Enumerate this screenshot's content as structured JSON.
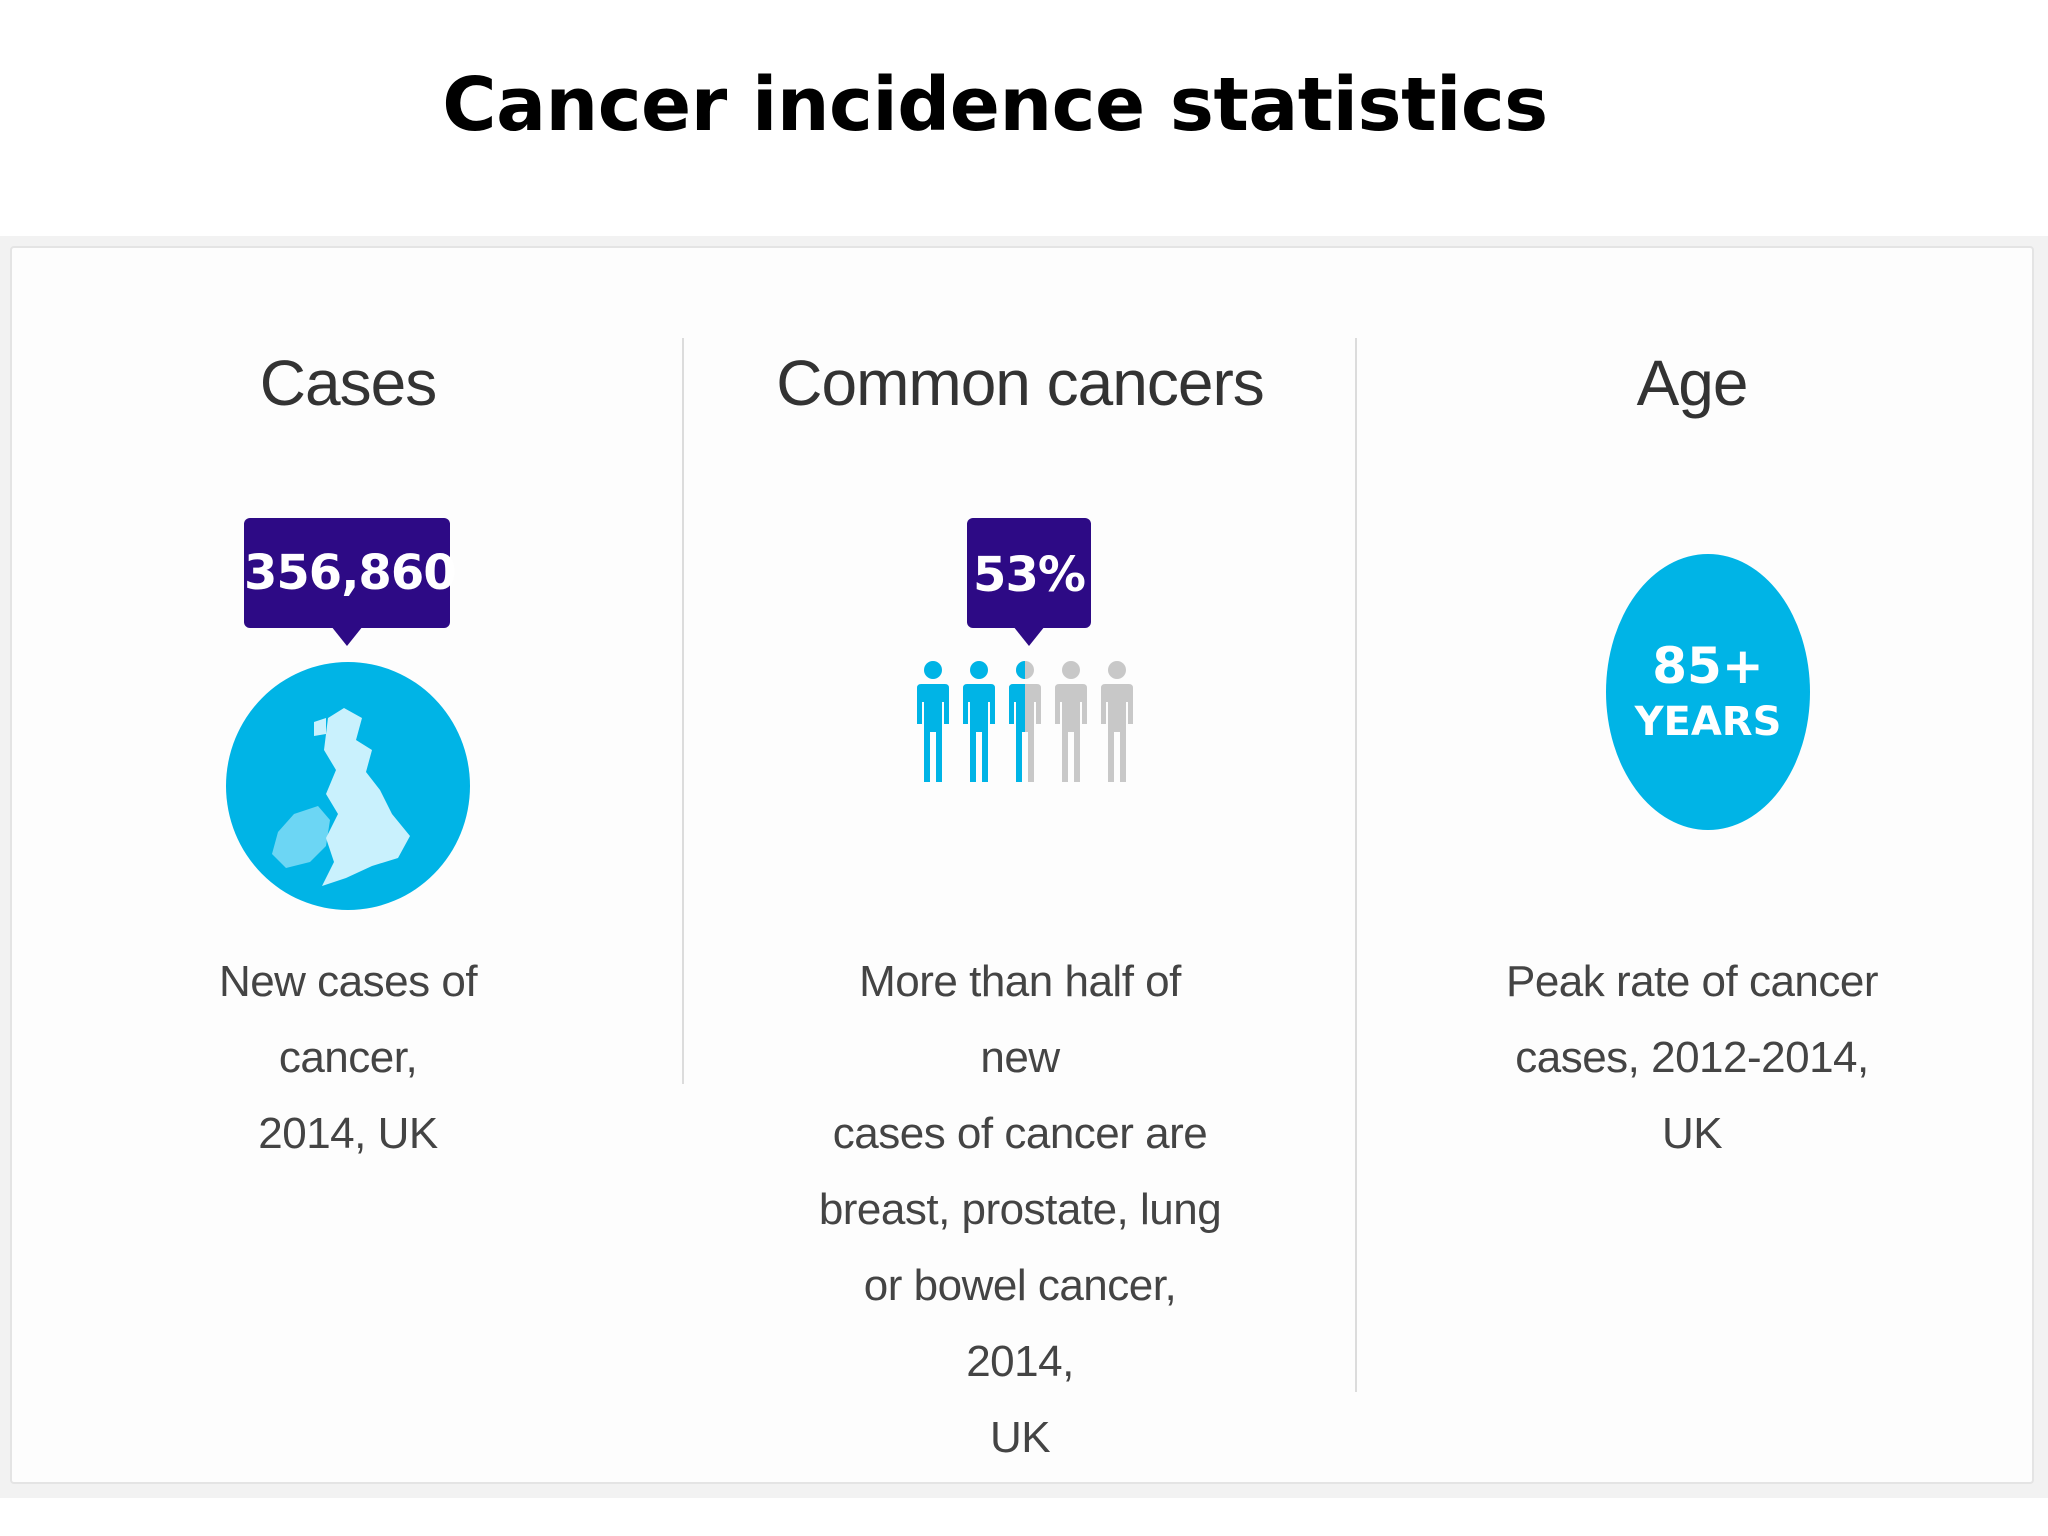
{
  "title": "Cancer incidence statistics",
  "colors": {
    "badge": "#2d0a85",
    "accent_blue": "#00b4e6",
    "light_blue": "#aee8f8",
    "person_grey": "#c8c8c8"
  },
  "columns": [
    {
      "heading": "Cases",
      "badge": "356,860",
      "icon": "uk-map-icon",
      "text_lines": [
        "New cases of cancer,",
        "2014, UK"
      ]
    },
    {
      "heading": "Common cancers",
      "badge": "53%",
      "icon": "people-icon",
      "people_total": 5,
      "people_highlighted": 2.5,
      "text_lines": [
        "More than half of new",
        "cases of cancer are",
        "breast, prostate, lung",
        "or bowel cancer, 2014,",
        "UK"
      ]
    },
    {
      "heading": "Age",
      "circle_line1": "85+",
      "circle_line2": "YEARS",
      "text_lines": [
        "Peak rate of cancer",
        "cases, 2012-2014, UK"
      ]
    }
  ]
}
